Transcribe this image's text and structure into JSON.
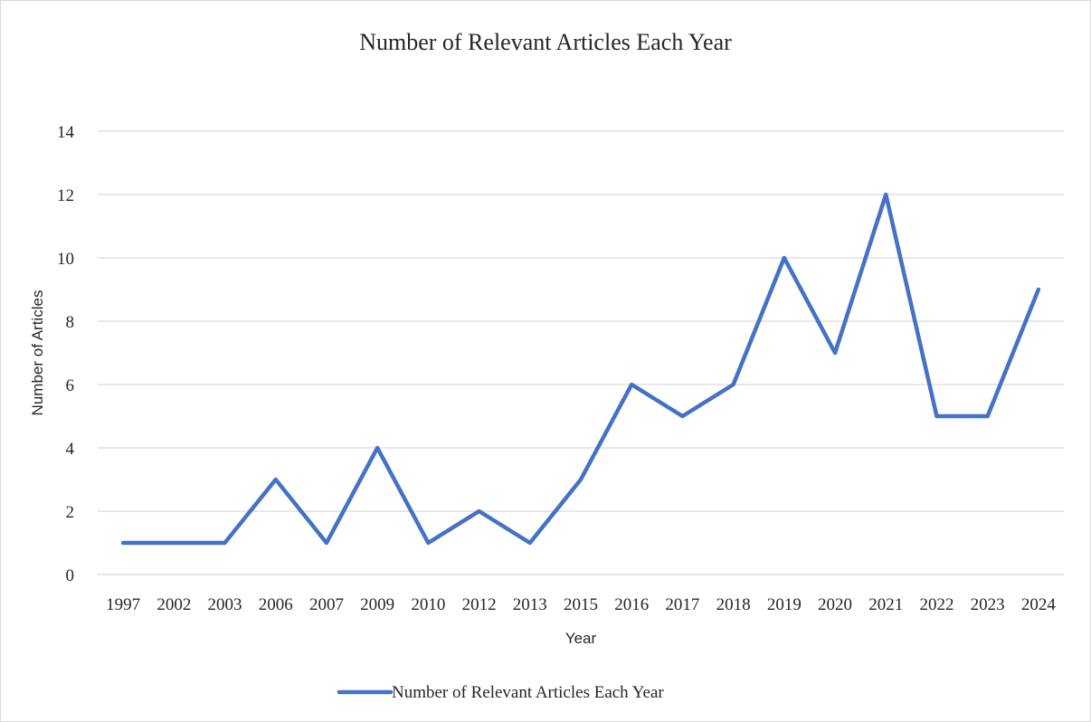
{
  "chart_data": {
    "type": "line",
    "title": "Number of Relevant Articles Each Year",
    "xlabel": "Year",
    "ylabel": "Number of Articles",
    "categories": [
      "1997",
      "2002",
      "2003",
      "2006",
      "2007",
      "2009",
      "2010",
      "2012",
      "2013",
      "2015",
      "2016",
      "2017",
      "2018",
      "2019",
      "2020",
      "2021",
      "2022",
      "2023",
      "2024"
    ],
    "series": [
      {
        "name": "Number of Relevant Articles Each Year",
        "values": [
          1,
          1,
          1,
          3,
          1,
          4,
          1,
          2,
          1,
          3,
          6,
          5,
          6,
          10,
          7,
          12,
          5,
          5,
          9
        ],
        "color": "#4472c4"
      }
    ],
    "ylim": [
      0,
      14
    ],
    "yticks": [
      0,
      2,
      4,
      6,
      8,
      10,
      12,
      14
    ],
    "grid": true,
    "legend": "bottom"
  }
}
